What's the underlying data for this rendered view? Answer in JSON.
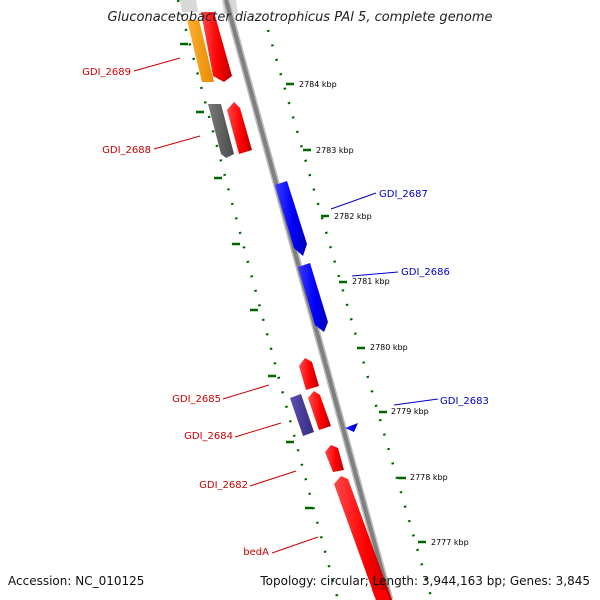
{
  "title": "Gluconacetobacter diazotrophicus PAl 5, complete genome",
  "footer": {
    "accession_label": "Accession: ",
    "accession": "NC_010125",
    "topology": "Topology: circular",
    "length": "Length: 3,944,163 bp",
    "genes": "Genes: 3,845"
  },
  "scale_labels": [
    "2784 kbp",
    "2783 kbp",
    "2782 kbp",
    "2781 kbp",
    "2780 kbp",
    "2779 kbp",
    "2778 kbp",
    "2777 kbp"
  ],
  "genes": [
    {
      "id": "GDI_2689",
      "color": "#cc0000"
    },
    {
      "id": "GDI_2688",
      "color": "#cc0000"
    },
    {
      "id": "GDI_2687",
      "color": "#0000cc"
    },
    {
      "id": "GDI_2686",
      "color": "#0000cc"
    },
    {
      "id": "GDI_2685",
      "color": "#cc0000"
    },
    {
      "id": "GDI_2684",
      "color": "#cc0000"
    },
    {
      "id": "GDI_2683",
      "color": "#0000cc"
    },
    {
      "id": "GDI_2682",
      "color": "#cc0000"
    },
    {
      "id": "bedA",
      "color": "#cc0000"
    }
  ],
  "colors": {
    "forward_gene": "#ff0000",
    "reverse_gene": "#0000ff",
    "orange_feature": "#ff9900",
    "gray_feature": "#666666",
    "purple_feature": "#4a3f9a",
    "backbone": "#808080",
    "scale_ticks": "#006600"
  }
}
